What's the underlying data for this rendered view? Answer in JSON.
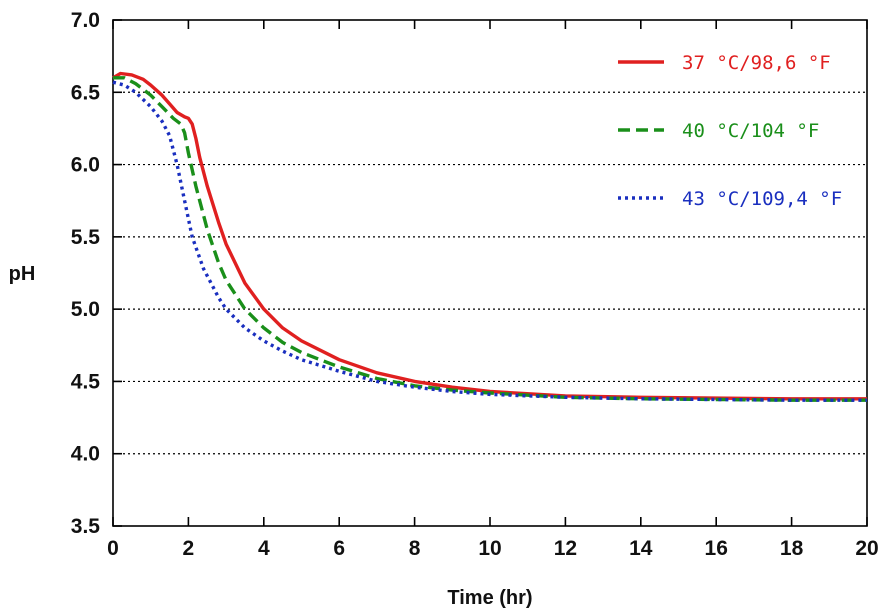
{
  "chart_data": {
    "type": "line",
    "xlabel": "Time (hr)",
    "ylabel": "pH",
    "xlim": [
      0,
      20
    ],
    "ylim": [
      3.5,
      7.0
    ],
    "x_ticks": [
      "0",
      "2",
      "4",
      "6",
      "8",
      "10",
      "12",
      "14",
      "16",
      "18",
      "20"
    ],
    "y_ticks": [
      "3.5",
      "4.0",
      "4.5",
      "5.0",
      "5.5",
      "6.0",
      "6.5",
      "7.0"
    ],
    "grid": "horizontal dotted",
    "legend_position": "top-right",
    "series": [
      {
        "name": "37 °C/98,6 °F",
        "color": "#e02020",
        "style": "solid",
        "points": [
          [
            0,
            6.6
          ],
          [
            0.2,
            6.63
          ],
          [
            0.5,
            6.62
          ],
          [
            0.8,
            6.59
          ],
          [
            1.0,
            6.55
          ],
          [
            1.3,
            6.48
          ],
          [
            1.5,
            6.42
          ],
          [
            1.7,
            6.36
          ],
          [
            1.9,
            6.33
          ],
          [
            2.0,
            6.32
          ],
          [
            2.1,
            6.28
          ],
          [
            2.2,
            6.18
          ],
          [
            2.3,
            6.05
          ],
          [
            2.5,
            5.85
          ],
          [
            2.8,
            5.6
          ],
          [
            3.0,
            5.45
          ],
          [
            3.5,
            5.18
          ],
          [
            4.0,
            5.0
          ],
          [
            4.5,
            4.87
          ],
          [
            5.0,
            4.78
          ],
          [
            6.0,
            4.65
          ],
          [
            7.0,
            4.56
          ],
          [
            8.0,
            4.5
          ],
          [
            9.0,
            4.46
          ],
          [
            10.0,
            4.43
          ],
          [
            12.0,
            4.4
          ],
          [
            14.0,
            4.39
          ],
          [
            16.0,
            4.385
          ],
          [
            18.0,
            4.38
          ],
          [
            20.0,
            4.38
          ]
        ]
      },
      {
        "name": "40 °C/104 °F",
        "color": "#1a8f1a",
        "style": "dashed",
        "points": [
          [
            0,
            6.6
          ],
          [
            0.3,
            6.6
          ],
          [
            0.6,
            6.56
          ],
          [
            1.0,
            6.48
          ],
          [
            1.3,
            6.4
          ],
          [
            1.6,
            6.32
          ],
          [
            1.8,
            6.28
          ],
          [
            1.9,
            6.22
          ],
          [
            2.0,
            6.08
          ],
          [
            2.2,
            5.85
          ],
          [
            2.5,
            5.55
          ],
          [
            2.8,
            5.32
          ],
          [
            3.0,
            5.2
          ],
          [
            3.5,
            5.0
          ],
          [
            4.0,
            4.87
          ],
          [
            4.5,
            4.77
          ],
          [
            5.0,
            4.7
          ],
          [
            6.0,
            4.6
          ],
          [
            7.0,
            4.52
          ],
          [
            8.0,
            4.47
          ],
          [
            9.0,
            4.44
          ],
          [
            10.0,
            4.42
          ],
          [
            12.0,
            4.39
          ],
          [
            14.0,
            4.38
          ],
          [
            16.0,
            4.375
          ],
          [
            18.0,
            4.37
          ],
          [
            20.0,
            4.37
          ]
        ]
      },
      {
        "name": "43 °C/109,4 °F",
        "color": "#1a2fbf",
        "style": "dotted",
        "points": [
          [
            0,
            6.57
          ],
          [
            0.3,
            6.55
          ],
          [
            0.6,
            6.5
          ],
          [
            1.0,
            6.4
          ],
          [
            1.3,
            6.3
          ],
          [
            1.5,
            6.2
          ],
          [
            1.7,
            6.0
          ],
          [
            1.9,
            5.75
          ],
          [
            2.1,
            5.5
          ],
          [
            2.4,
            5.28
          ],
          [
            2.8,
            5.08
          ],
          [
            3.0,
            5.0
          ],
          [
            3.5,
            4.87
          ],
          [
            4.0,
            4.78
          ],
          [
            4.5,
            4.71
          ],
          [
            5.0,
            4.65
          ],
          [
            6.0,
            4.57
          ],
          [
            7.0,
            4.5
          ],
          [
            8.0,
            4.46
          ],
          [
            9.0,
            4.43
          ],
          [
            10.0,
            4.41
          ],
          [
            12.0,
            4.39
          ],
          [
            14.0,
            4.38
          ],
          [
            16.0,
            4.375
          ],
          [
            18.0,
            4.37
          ],
          [
            20.0,
            4.37
          ]
        ]
      }
    ]
  }
}
